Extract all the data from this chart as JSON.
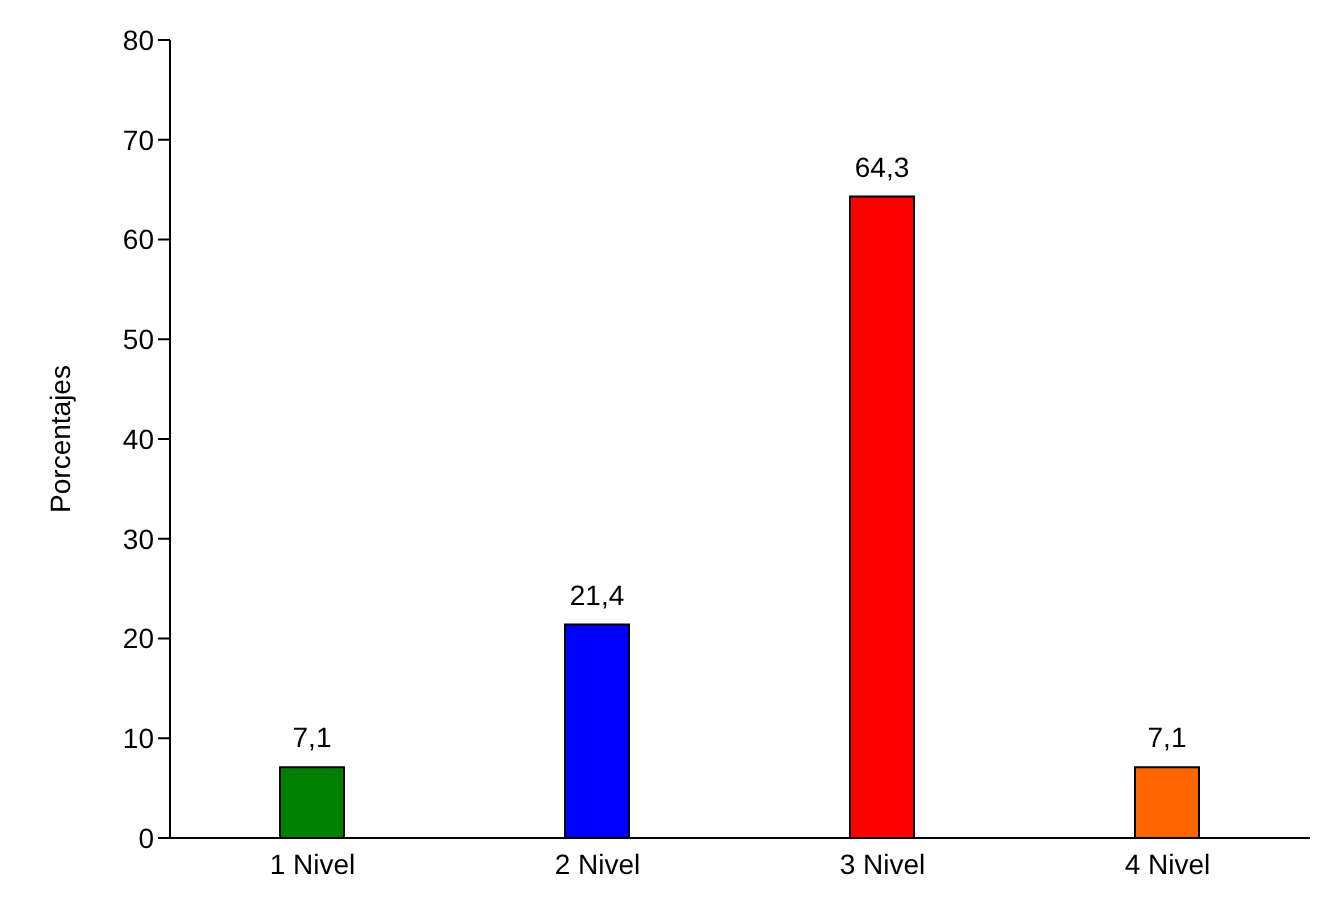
{
  "chart_data": {
    "type": "bar",
    "ylabel": "Porcentajes",
    "categories": [
      "1 Nivel",
      "2 Nivel",
      "3 Nivel",
      "4 Nivel"
    ],
    "values": [
      7.1,
      21.4,
      64.3,
      7.1
    ],
    "colors": [
      "#008000",
      "#0000ff",
      "#ff0000",
      "#ff6600"
    ],
    "value_labels": [
      "7,1",
      "21,4",
      "64,3",
      "7,1"
    ],
    "ylim": [
      0,
      80
    ],
    "yticks": [
      0,
      10,
      20,
      30,
      40,
      50,
      60,
      70,
      80
    ],
    "grid": false,
    "legend": false
  }
}
